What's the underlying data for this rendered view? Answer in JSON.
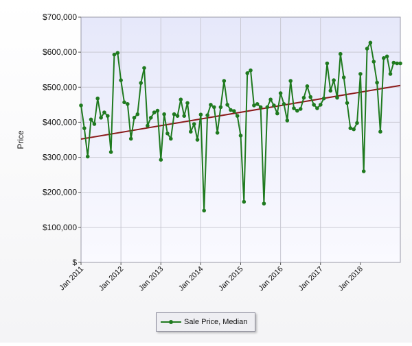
{
  "chart_data": {
    "type": "line",
    "title": "",
    "xlabel": "",
    "ylabel": "Price",
    "ylim": [
      0,
      700000
    ],
    "yticks": [
      "$",
      "$100,000",
      "$200,000",
      "$300,000",
      "$400,000",
      "$500,000",
      "$600,000",
      "$700,000"
    ],
    "xticks": [
      "Jan 2011",
      "Jan 2012",
      "Jan 2013",
      "Jan 2014",
      "Jan 2015",
      "Jan 2016",
      "Jan 2017",
      "Jan 2018"
    ],
    "grid": true,
    "legend_position": "bottom-center",
    "colors": {
      "series": "#1f7a1f",
      "trend": "#8b1a1a",
      "plot_bg": "#eef0fb"
    },
    "series": [
      {
        "name": "Sale Price, Median",
        "color": "#1f7a1f",
        "values": [
          448000,
          383000,
          302000,
          408000,
          395000,
          468000,
          413000,
          428000,
          418000,
          315000,
          593000,
          598000,
          520000,
          457000,
          452000,
          353000,
          413000,
          423000,
          512000,
          555000,
          390000,
          413000,
          428000,
          433000,
          293000,
          423000,
          368000,
          353000,
          423000,
          418000,
          465000,
          418000,
          455000,
          373000,
          395000,
          350000,
          422000,
          148000,
          420000,
          450000,
          443000,
          370000,
          443000,
          518000,
          450000,
          435000,
          432000,
          418000,
          362000,
          173000,
          540000,
          548000,
          448000,
          452000,
          443000,
          168000,
          443000,
          465000,
          448000,
          425000,
          483000,
          452000,
          405000,
          518000,
          440000,
          433000,
          438000,
          470000,
          503000,
          472000,
          450000,
          440000,
          450000,
          468000,
          568000,
          490000,
          520000,
          470000,
          595000,
          528000,
          455000,
          383000,
          380000,
          398000,
          538000,
          260000,
          610000,
          627000,
          573000,
          513000,
          373000,
          583000,
          588000,
          538000,
          570000,
          568000,
          568000
        ]
      }
    ],
    "trendline": {
      "start": 352000,
      "end": 505000
    }
  },
  "legend": {
    "label": "Sale Price, Median"
  }
}
